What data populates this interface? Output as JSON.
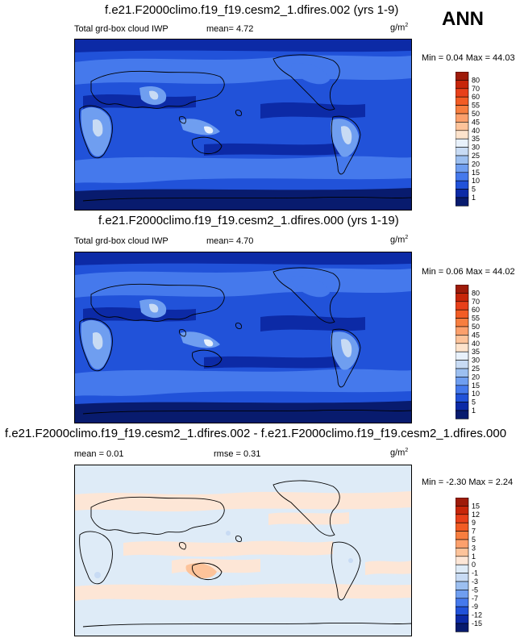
{
  "season": "ANN",
  "panels": [
    {
      "title": "f.e21.F2000climo.f19_f19.cesm2_1.dfires.002 (yrs 1-9)",
      "left_label": "Total grd-box cloud IWP",
      "mid_label": "mean=   4.72",
      "units_base": "g/m",
      "units_exp": "2",
      "minmax": "Min =   0.04 Max =  44.03",
      "levels": [
        "80",
        "70",
        "60",
        "55",
        "50",
        "45",
        "40",
        "35",
        "30",
        "25",
        "20",
        "15",
        "10",
        "5",
        "1"
      ],
      "colors": [
        "#9e1b0a",
        "#c7260a",
        "#e8401a",
        "#f25c24",
        "#f77e3f",
        "#fca06c",
        "#fdc39a",
        "#fde3cc",
        "#e8f1fb",
        "#c8dbf4",
        "#9cbff0",
        "#6f9ef0",
        "#4579ec",
        "#2152d9",
        "#0c2aa6",
        "#081b6e"
      ]
    },
    {
      "title": "f.e21.F2000climo.f19_f19.cesm2_1.dfires.000 (yrs 1-19)",
      "left_label": "Total grd-box cloud IWP",
      "mid_label": "mean=   4.70",
      "units_base": "g/m",
      "units_exp": "2",
      "minmax": "Min =   0.06 Max =  44.02",
      "levels": [
        "80",
        "70",
        "60",
        "55",
        "50",
        "45",
        "40",
        "35",
        "30",
        "25",
        "20",
        "15",
        "10",
        "5",
        "1"
      ],
      "colors": [
        "#9e1b0a",
        "#c7260a",
        "#e8401a",
        "#f25c24",
        "#f77e3f",
        "#fca06c",
        "#fdc39a",
        "#fde3cc",
        "#e8f1fb",
        "#c8dbf4",
        "#9cbff0",
        "#6f9ef0",
        "#4579ec",
        "#2152d9",
        "#0c2aa6",
        "#081b6e"
      ]
    },
    {
      "title": "f.e21.F2000climo.f19_f19.cesm2_1.dfires.002 - f.e21.F2000climo.f19_f19.cesm2_1.dfires.000",
      "left_label": "mean =   0.01",
      "mid_label": "rmse =   0.31",
      "units_base": "g/m",
      "units_exp": "2",
      "minmax": "Min =  -2.30 Max =   2.24",
      "levels": [
        "15",
        "12",
        "9",
        "7",
        "5",
        "3",
        "1",
        "0",
        "-1",
        "-3",
        "-5",
        "-7",
        "-9",
        "-12",
        "-15"
      ],
      "colors": [
        "#9e1b0a",
        "#c7260a",
        "#e8401a",
        "#f25c24",
        "#f77e3f",
        "#fca06c",
        "#fdc39a",
        "#fde6d6",
        "#deebf7",
        "#c8dbf4",
        "#9cbff0",
        "#6f9ef0",
        "#4579ec",
        "#2152d9",
        "#0c2aa6",
        "#081b6e"
      ]
    }
  ],
  "chart_data": [
    {
      "type": "heatmap",
      "title": "f.e21.F2000climo.f19_f19.cesm2_1.dfires.002 (yrs 1-9)",
      "variable": "Total grd-box cloud IWP",
      "units": "g/m2",
      "mean": 4.72,
      "min": 0.04,
      "max": 44.03,
      "contour_levels": [
        1,
        5,
        10,
        15,
        20,
        25,
        30,
        35,
        40,
        45,
        50,
        55,
        60,
        70,
        80
      ]
    },
    {
      "type": "heatmap",
      "title": "f.e21.F2000climo.f19_f19.cesm2_1.dfires.000 (yrs 1-19)",
      "variable": "Total grd-box cloud IWP",
      "units": "g/m2",
      "mean": 4.7,
      "min": 0.06,
      "max": 44.02,
      "contour_levels": [
        1,
        5,
        10,
        15,
        20,
        25,
        30,
        35,
        40,
        45,
        50,
        55,
        60,
        70,
        80
      ]
    },
    {
      "type": "heatmap",
      "title": "f.e21.F2000climo.f19_f19.cesm2_1.dfires.002 - f.e21.F2000climo.f19_f19.cesm2_1.dfires.000",
      "units": "g/m2",
      "mean": 0.01,
      "rmse": 0.31,
      "min": -2.3,
      "max": 2.24,
      "contour_levels": [
        -15,
        -12,
        -9,
        -7,
        -5,
        -3,
        -1,
        0,
        1,
        3,
        5,
        7,
        9,
        12,
        15
      ]
    }
  ]
}
